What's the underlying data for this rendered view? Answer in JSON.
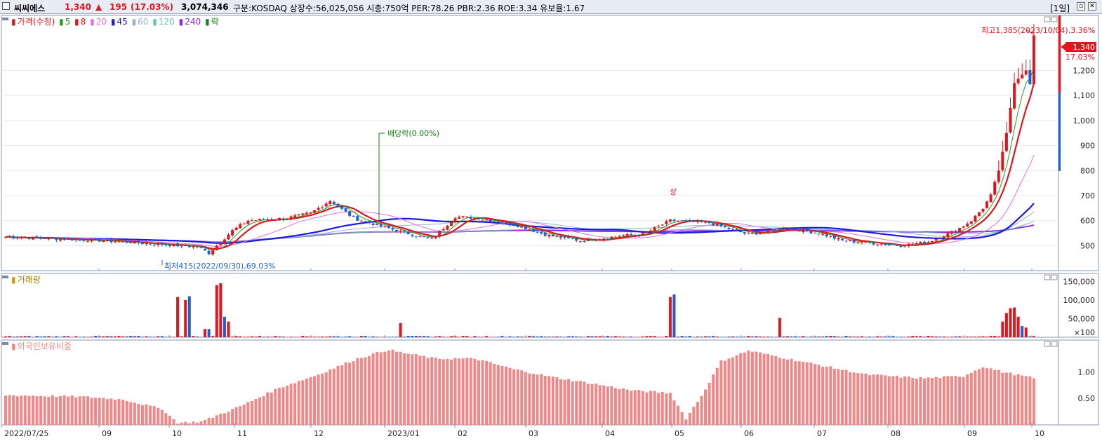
{
  "header": {
    "stock_name": "씨씨에스",
    "price": "1,340",
    "change_arrow": "▲",
    "change": "195",
    "change_pct": "(17.03%)",
    "volume": "3,074,346",
    "info": "구분:KOSDAQ 상장수:56,025,056 시총:750억 PER:78.26 PBR:2.36 ROE:3.34 유보율:1.67",
    "period": "[1일]"
  },
  "colors": {
    "up": "#e0161e",
    "down": "#1f5fd0",
    "ma5": "#20a020",
    "ma8": "#e0161e",
    "ma20": "#e070e0",
    "ma45": "#1a1ae0",
    "ma60": "#9ab0d8",
    "ma120": "#6ac8a8",
    "ma240": "#8a2be2",
    "foreign": "#f08888",
    "dividend": "#188018"
  },
  "legend": {
    "price_title": "가격(수정)",
    "ma": [
      "5",
      "8",
      "20",
      "45",
      "60",
      "120",
      "240"
    ],
    "fall": "락",
    "volume_title": "거래량",
    "foreign_title": "외국인보유비중"
  },
  "annotations": {
    "high": "최고1,385(2023/10/04),3.36%",
    "low": "최저415(2022/09/30),69.03%",
    "dividend": "배당락(0.00%)",
    "upper_limit": "상",
    "last_price": "1,340",
    "last_pct": "17.03%"
  },
  "chart_data": [
    {
      "type": "candlestick",
      "title": "가격(수정)",
      "y_ticks": [
        500,
        600,
        700,
        800,
        900,
        1000,
        1100,
        1200
      ],
      "y_tick_labels": [
        "500",
        "600",
        "700",
        "800",
        "900",
        "1,000",
        "1,100",
        "1,200"
      ],
      "ylim": [
        400,
        1420
      ],
      "x_ticks": [
        "2022/07/25",
        "09",
        "10",
        "11",
        "12",
        "2023/01",
        "02",
        "03",
        "04",
        "05",
        "06",
        "07",
        "08",
        "09",
        "10"
      ],
      "close_anchors": {
        "days": [
          0,
          25,
          40,
          49,
          52,
          58,
          62,
          72,
          78,
          83,
          89,
          100,
          109,
          115,
          121,
          131,
          139,
          147,
          158,
          163,
          170,
          180,
          190,
          200,
          208,
          214,
          222,
          229,
          236,
          243,
          247,
          250,
          252,
          254,
          256,
          258,
          261,
          262,
          263
        ],
        "values": [
          535,
          520,
          505,
          495,
          470,
          560,
          600,
          610,
          630,
          680,
          610,
          560,
          525,
          615,
          610,
          580,
          540,
          520,
          540,
          545,
          600,
          590,
          545,
          570,
          550,
          520,
          510,
          500,
          515,
          560,
          600,
          650,
          700,
          800,
          950,
          1150,
          1200,
          1145,
          1340
        ]
      },
      "moving_averages": [
        "5",
        "8",
        "20",
        "45",
        "60",
        "120",
        "240"
      ],
      "high": {
        "value": 1385,
        "date": "2023/10/04",
        "pct": "3.36%"
      },
      "low": {
        "value": 415,
        "date": "2022/09/30",
        "pct": "69.03%"
      },
      "last": {
        "value": 1340,
        "pct": "17.03%"
      }
    },
    {
      "type": "bar",
      "title": "거래량",
      "y_tick_labels": [
        "150,000",
        "100,000",
        "50,000"
      ],
      "y_ticks": [
        150000,
        100000,
        50000
      ],
      "unit_label": "×100",
      "spikes": [
        {
          "day": 44,
          "value": 1080,
          "up": true
        },
        {
          "day": 46,
          "value": 1000,
          "up": true
        },
        {
          "day": 47,
          "value": 1100,
          "up": false
        },
        {
          "day": 51,
          "value": 220,
          "up": true
        },
        {
          "day": 52,
          "value": 220,
          "up": false
        },
        {
          "day": 54,
          "value": 1400,
          "up": true
        },
        {
          "day": 55,
          "value": 1450,
          "up": true
        },
        {
          "day": 56,
          "value": 550,
          "up": false
        },
        {
          "day": 57,
          "value": 420,
          "up": true
        },
        {
          "day": 101,
          "value": 380,
          "up": true
        },
        {
          "day": 170,
          "value": 1080,
          "up": true
        },
        {
          "day": 171,
          "value": 1150,
          "up": false
        },
        {
          "day": 198,
          "value": 520,
          "up": true
        },
        {
          "day": 255,
          "value": 420,
          "up": true
        },
        {
          "day": 256,
          "value": 650,
          "up": true
        },
        {
          "day": 257,
          "value": 780,
          "up": true
        },
        {
          "day": 258,
          "value": 800,
          "up": true
        },
        {
          "day": 259,
          "value": 550,
          "up": true
        },
        {
          "day": 260,
          "value": 300,
          "up": false
        },
        {
          "day": 261,
          "value": 260,
          "up": true
        }
      ]
    },
    {
      "type": "bar",
      "title": "외국인보유비중",
      "y_tick_labels": [
        "1.00",
        "0.50"
      ],
      "y_ticks": [
        1.0,
        0.5
      ],
      "ylim": [
        0,
        1.6
      ],
      "anchors": {
        "days": [
          0,
          20,
          30,
          40,
          44,
          50,
          60,
          70,
          80,
          90,
          98,
          100,
          110,
          120,
          130,
          140,
          150,
          160,
          170,
          174,
          178,
          183,
          190,
          200,
          210,
          220,
          230,
          235,
          245,
          250,
          255,
          263
        ],
        "values": [
          0.56,
          0.53,
          0.48,
          0.3,
          0.04,
          0.06,
          0.35,
          0.7,
          0.95,
          1.25,
          1.42,
          1.38,
          1.25,
          1.25,
          1.05,
          0.9,
          0.78,
          0.65,
          0.6,
          0.12,
          0.55,
          1.2,
          1.4,
          1.25,
          1.1,
          0.95,
          0.9,
          0.88,
          0.92,
          1.1,
          1.0,
          0.88
        ]
      }
    }
  ]
}
